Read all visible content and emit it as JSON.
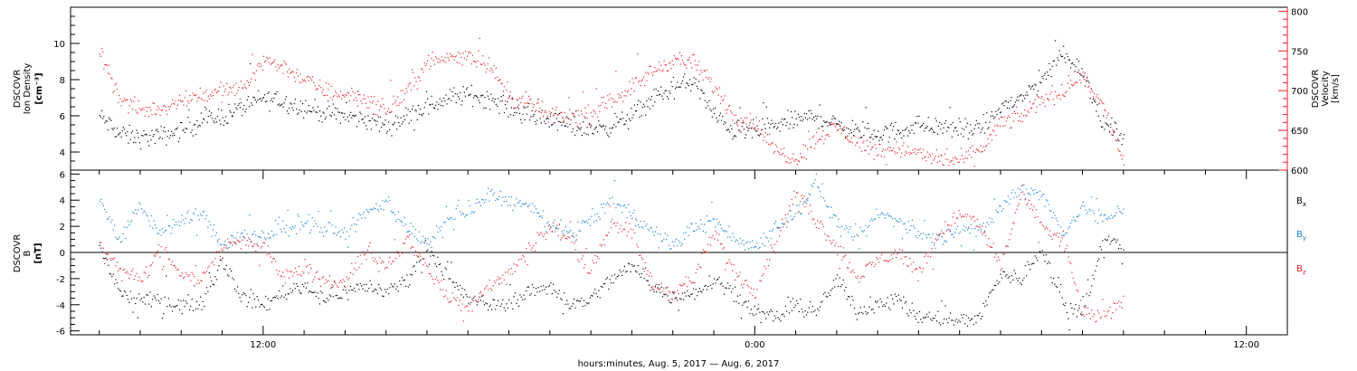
{
  "chart_data": [
    {
      "type": "scatter",
      "panel": "top",
      "ylabel_left": [
        "DSCOVR",
        "Ion Density",
        "[cm⁻³]"
      ],
      "ylabel_right": [
        "DSCOVR",
        "Velocity",
        "[km/s]"
      ],
      "ylim_left": [
        3,
        12
      ],
      "ylim_right": [
        600,
        805
      ],
      "yticks_left": [
        "4",
        "6",
        "8",
        "10"
      ],
      "yticks_right": [
        "600",
        "650",
        "700",
        "750",
        "800"
      ],
      "right_axis_color": "#e8202a",
      "series": [
        {
          "name": "",
          "axis": "left",
          "color": "#000000",
          "x": [
            8.0,
            8.5,
            9.0,
            9.5,
            10.0,
            10.5,
            11.0,
            11.5,
            12.0,
            12.5,
            13.0,
            13.5,
            14.0,
            14.5,
            15.0,
            15.5,
            16.0,
            16.5,
            17.0,
            17.5,
            18.0,
            18.5,
            19.0,
            19.5,
            20.0,
            20.5,
            21.0,
            21.5,
            22.0,
            22.5,
            23.0,
            23.5,
            24.0,
            24.5,
            25.0,
            25.5,
            26.0,
            26.5,
            27.0,
            27.5,
            28.0,
            28.5,
            29.0,
            29.5,
            30.0,
            30.5,
            31.0,
            31.5,
            32.0,
            32.5,
            33.0
          ],
          "y": [
            6.0,
            5.0,
            4.8,
            4.9,
            5.2,
            5.8,
            6.0,
            6.5,
            7.0,
            6.8,
            6.5,
            6.2,
            6.0,
            5.8,
            5.5,
            6.0,
            6.5,
            7.0,
            7.2,
            7.0,
            6.5,
            6.0,
            5.8,
            5.5,
            5.3,
            5.5,
            6.0,
            7.0,
            7.5,
            8.0,
            6.0,
            5.2,
            5.2,
            5.5,
            5.8,
            6.0,
            5.5,
            5.2,
            5.0,
            5.2,
            5.5,
            5.4,
            5.3,
            5.2,
            6.5,
            7.0,
            8.0,
            9.5,
            8.5,
            5.5,
            5.0
          ]
        },
        {
          "name": "",
          "axis": "right",
          "color": "#e8202a",
          "x": [
            8.0,
            8.5,
            9.0,
            9.5,
            10.0,
            10.5,
            11.0,
            11.5,
            12.0,
            12.5,
            13.0,
            13.5,
            14.0,
            14.5,
            15.0,
            15.5,
            16.0,
            16.5,
            17.0,
            17.5,
            18.0,
            18.5,
            19.0,
            19.5,
            20.0,
            20.5,
            21.0,
            21.5,
            22.0,
            22.5,
            23.0,
            23.5,
            24.0,
            24.5,
            25.0,
            25.5,
            26.0,
            26.5,
            27.0,
            27.5,
            28.0,
            28.5,
            29.0,
            29.5,
            30.0,
            30.5,
            31.0,
            31.5,
            32.0,
            32.5,
            33.0
          ],
          "y": [
            750,
            690,
            675,
            678,
            690,
            695,
            700,
            702,
            740,
            730,
            715,
            700,
            695,
            690,
            675,
            700,
            735,
            742,
            745,
            735,
            690,
            685,
            668,
            668,
            670,
            690,
            705,
            725,
            740,
            735,
            705,
            668,
            660,
            625,
            615,
            640,
            655,
            635,
            625,
            628,
            620,
            615,
            612,
            625,
            660,
            668,
            690,
            700,
            720,
            680,
            610
          ]
        }
      ]
    },
    {
      "type": "scatter",
      "panel": "bottom",
      "ylabel_left": [
        "DSCOVR",
        "B",
        "[nT]"
      ],
      "ylim": [
        -6.3,
        6.3
      ],
      "yticks": [
        "-6",
        "-4",
        "-2",
        "0",
        "2",
        "4",
        "6"
      ],
      "zero_line": true,
      "series": [
        {
          "name": "Bx",
          "color": "#000000",
          "x": [
            8.0,
            8.5,
            9.0,
            9.5,
            10.0,
            10.5,
            11.0,
            11.5,
            12.0,
            12.5,
            13.0,
            13.5,
            14.0,
            14.5,
            15.0,
            15.5,
            16.0,
            16.5,
            17.0,
            17.5,
            18.0,
            18.5,
            19.0,
            19.5,
            20.0,
            20.5,
            21.0,
            21.5,
            22.0,
            22.5,
            23.0,
            23.5,
            24.0,
            24.5,
            25.0,
            25.5,
            26.0,
            26.5,
            27.0,
            27.5,
            28.0,
            28.5,
            29.0,
            29.5,
            30.0,
            30.5,
            31.0,
            31.5,
            32.0,
            32.5,
            33.0
          ],
          "y": [
            0.5,
            -3.0,
            -3.8,
            -3.5,
            -4.0,
            -3.8,
            -0.5,
            -3.5,
            -4.0,
            -3.0,
            -2.5,
            -3.5,
            -3.0,
            -2.5,
            -3.0,
            -2.0,
            0.5,
            -2.0,
            -3.5,
            -4.0,
            -3.8,
            -3.0,
            -2.5,
            -4.0,
            -3.5,
            -2.0,
            -1.0,
            -2.5,
            -3.5,
            -3.0,
            -2.0,
            -3.0,
            -4.5,
            -5.0,
            -4.0,
            -4.5,
            -2.0,
            -4.5,
            -3.8,
            -3.5,
            -5.0,
            -5.0,
            -5.2,
            -4.8,
            -1.5,
            -2.0,
            0.5,
            -4.0,
            -4.5,
            1.0,
            0.5
          ]
        },
        {
          "name": "By",
          "color": "#1a7fd6",
          "x": [
            8.0,
            8.5,
            9.0,
            9.5,
            10.0,
            10.5,
            11.0,
            11.5,
            12.0,
            12.5,
            13.0,
            13.5,
            14.0,
            14.5,
            15.0,
            15.5,
            16.0,
            16.5,
            17.0,
            17.5,
            18.0,
            18.5,
            19.0,
            19.5,
            20.0,
            20.5,
            21.0,
            21.5,
            22.0,
            22.5,
            23.0,
            23.5,
            24.0,
            24.5,
            25.0,
            25.5,
            26.0,
            26.5,
            27.0,
            27.5,
            28.0,
            28.5,
            29.0,
            29.5,
            30.0,
            30.5,
            31.0,
            31.5,
            32.0,
            32.5,
            33.0
          ],
          "y": [
            4.0,
            1.0,
            3.5,
            1.5,
            2.5,
            3.0,
            0.5,
            1.5,
            1.0,
            2.0,
            2.5,
            1.8,
            1.5,
            3.0,
            4.0,
            2.0,
            0.5,
            2.5,
            3.0,
            4.5,
            4.0,
            3.5,
            2.0,
            1.5,
            2.5,
            4.0,
            3.0,
            1.5,
            0.5,
            2.0,
            2.5,
            1.0,
            0.5,
            2.0,
            3.0,
            5.5,
            2.0,
            1.0,
            3.0,
            2.5,
            1.5,
            1.0,
            2.0,
            1.5,
            3.5,
            5.0,
            4.5,
            1.5,
            3.5,
            2.5,
            3.5
          ]
        },
        {
          "name": "Bz",
          "color": "#e8202a",
          "x": [
            8.0,
            8.5,
            9.0,
            9.5,
            10.0,
            10.5,
            11.0,
            11.5,
            12.0,
            12.5,
            13.0,
            13.5,
            14.0,
            14.5,
            15.0,
            15.5,
            16.0,
            16.5,
            17.0,
            17.5,
            18.0,
            18.5,
            19.0,
            19.5,
            20.0,
            20.5,
            21.0,
            21.5,
            22.0,
            22.5,
            23.0,
            23.5,
            24.0,
            24.5,
            25.0,
            25.5,
            26.0,
            26.5,
            27.0,
            27.5,
            28.0,
            28.5,
            29.0,
            29.5,
            30.0,
            30.5,
            31.0,
            31.5,
            32.0,
            32.5,
            33.0
          ],
          "y": [
            1.0,
            -1.5,
            -2.0,
            0.0,
            -1.5,
            -2.0,
            0.5,
            1.0,
            0.5,
            -2.0,
            -1.0,
            -2.5,
            -2.0,
            0.0,
            -1.0,
            1.0,
            -1.0,
            -3.5,
            -4.0,
            -2.5,
            -1.5,
            0.5,
            2.0,
            1.0,
            -1.5,
            2.5,
            1.5,
            -2.5,
            -3.0,
            -2.0,
            1.5,
            -1.5,
            -3.0,
            1.0,
            4.5,
            2.5,
            0.5,
            -2.0,
            -0.5,
            0.0,
            -1.5,
            1.5,
            3.0,
            2.0,
            -1.0,
            4.5,
            2.0,
            1.0,
            -4.5,
            -5.0,
            -3.5
          ]
        }
      ]
    }
  ],
  "xaxis": {
    "xlim": [
      7.3,
      37.0
    ],
    "ticks": [
      {
        "x": 12,
        "label": "12:00"
      },
      {
        "x": 24,
        "label": "0:00"
      },
      {
        "x": 36,
        "label": "12:00"
      }
    ],
    "label": "hours:minutes, Aug.  5, 2017 — Aug.  6, 2017"
  },
  "legend_bottom": [
    {
      "base": "B",
      "sub": "x",
      "color": "#000000"
    },
    {
      "base": "B",
      "sub": "y",
      "color": "#1a7fd6"
    },
    {
      "base": "B",
      "sub": "z",
      "color": "#e8202a"
    }
  ]
}
